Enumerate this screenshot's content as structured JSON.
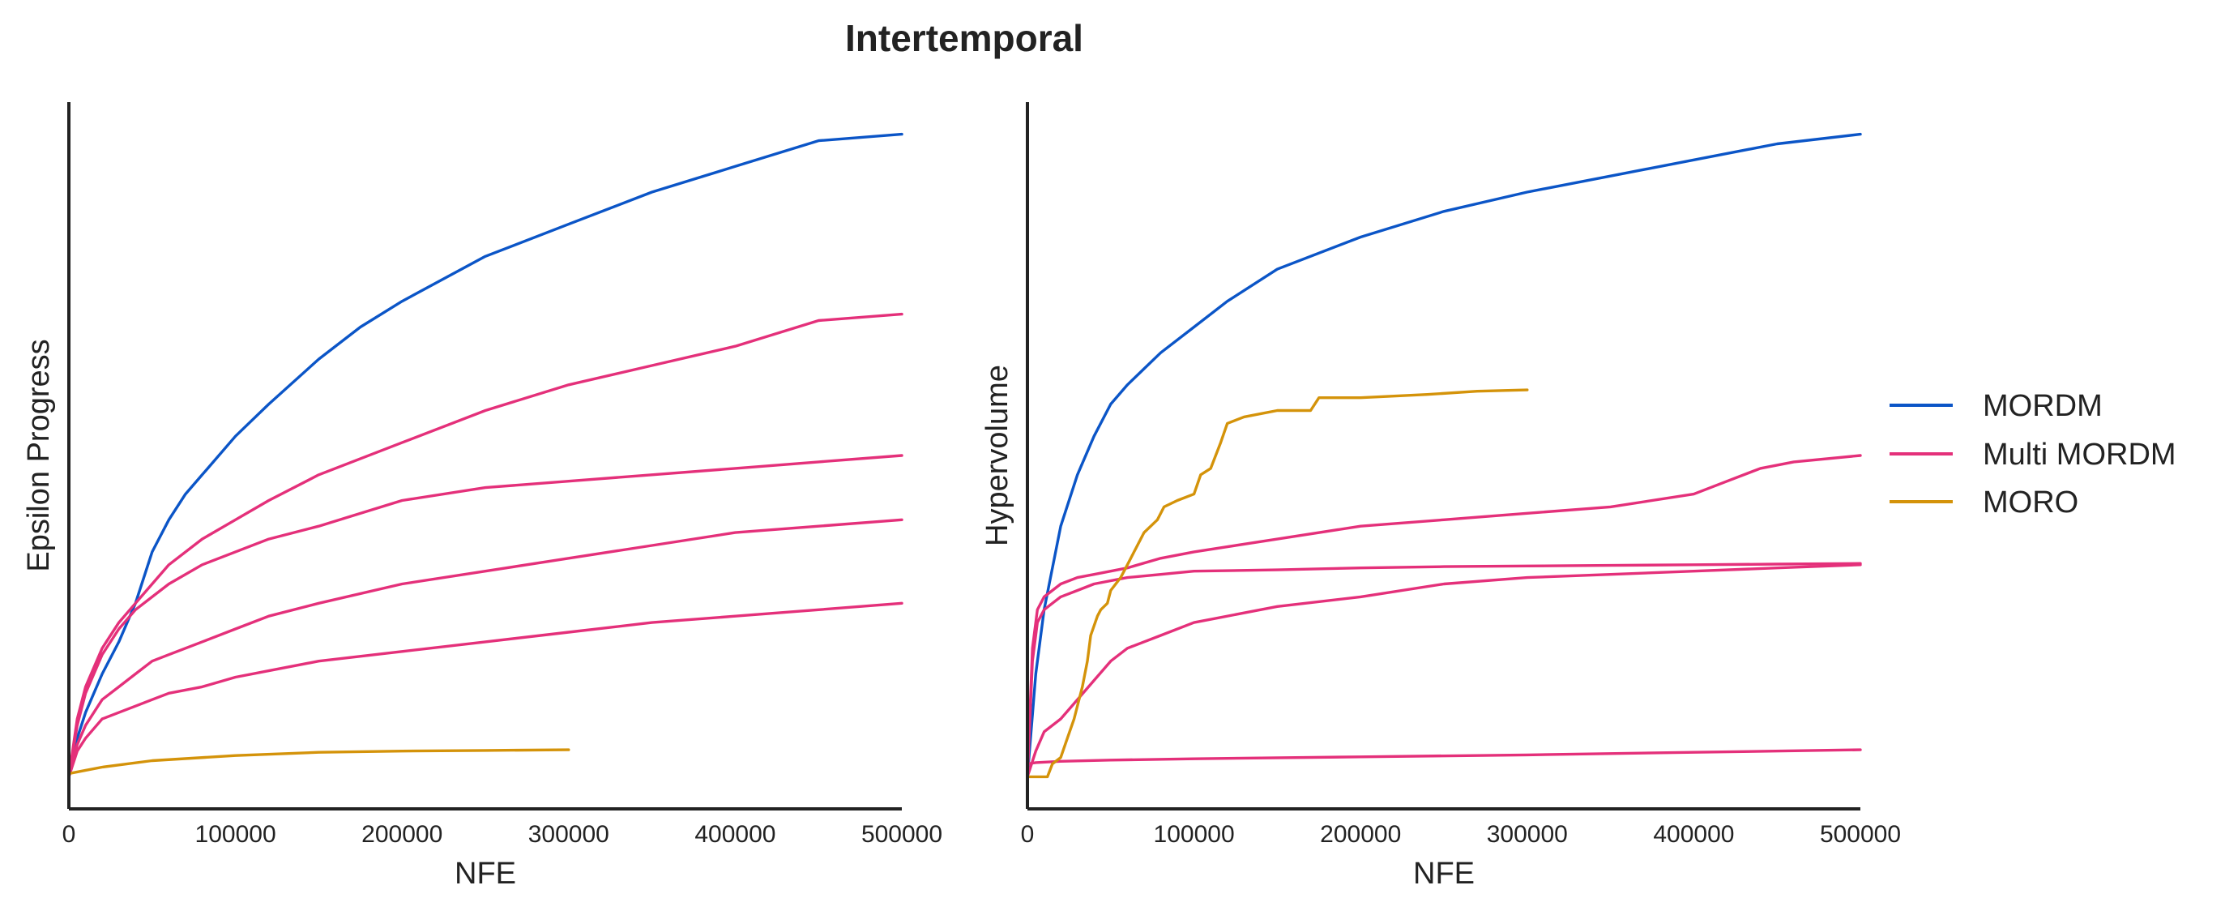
{
  "figure": {
    "title": "Intertemporal"
  },
  "colors": {
    "MORDM": "#0b55c7",
    "Multi MORDM": "#e4307a",
    "MORO": "#d4930a"
  },
  "legend": {
    "placement": "right",
    "entries": [
      {
        "name": "MORDM",
        "color": "#0b55c7"
      },
      {
        "name": "Multi MORDM",
        "color": "#e4307a"
      },
      {
        "name": "MORO",
        "color": "#d4930a"
      }
    ]
  },
  "chart_data": [
    {
      "type": "line",
      "xlabel": "NFE",
      "ylabel": "Epsilon Progress",
      "xlim": [
        0,
        500000
      ],
      "ylim": [
        -0.05,
        1.05
      ],
      "xticks": [
        "0",
        "100000",
        "200000",
        "300000",
        "400000",
        "500000"
      ],
      "yticks_visible": false,
      "grid": false,
      "series": [
        {
          "name": "MORDM",
          "color": "#0b55c7",
          "x": [
            0,
            5000,
            10000,
            20000,
            30000,
            40000,
            50000,
            60000,
            70000,
            80000,
            100000,
            120000,
            150000,
            175000,
            200000,
            250000,
            300000,
            350000,
            400000,
            450000,
            500000
          ],
          "y": [
            0,
            0.06,
            0.1,
            0.16,
            0.21,
            0.27,
            0.35,
            0.4,
            0.44,
            0.47,
            0.53,
            0.58,
            0.65,
            0.7,
            0.74,
            0.81,
            0.86,
            0.91,
            0.95,
            0.99,
            1.0
          ]
        },
        {
          "series_group": "Multi MORDM",
          "color": "#e4307a",
          "x": [
            0,
            5000,
            10000,
            20000,
            30000,
            40000,
            50000,
            60000,
            80000,
            100000,
            120000,
            150000,
            200000,
            250000,
            300000,
            350000,
            400000,
            450000,
            500000
          ],
          "y": [
            0,
            0.09,
            0.14,
            0.2,
            0.24,
            0.27,
            0.3,
            0.33,
            0.37,
            0.4,
            0.43,
            0.47,
            0.52,
            0.57,
            0.61,
            0.64,
            0.67,
            0.71,
            0.72
          ]
        },
        {
          "series_group": "Multi MORDM",
          "color": "#e4307a",
          "x": [
            0,
            5000,
            10000,
            20000,
            30000,
            40000,
            50000,
            60000,
            80000,
            100000,
            120000,
            150000,
            200000,
            250000,
            300000,
            350000,
            400000,
            450000,
            500000
          ],
          "y": [
            0,
            0.08,
            0.13,
            0.19,
            0.23,
            0.26,
            0.28,
            0.3,
            0.33,
            0.35,
            0.37,
            0.39,
            0.43,
            0.45,
            0.46,
            0.47,
            0.48,
            0.49,
            0.5
          ]
        },
        {
          "series_group": "Multi MORDM",
          "color": "#e4307a",
          "x": [
            0,
            5000,
            10000,
            20000,
            30000,
            40000,
            50000,
            60000,
            80000,
            100000,
            120000,
            150000,
            200000,
            250000,
            300000,
            350000,
            400000,
            450000,
            500000
          ],
          "y": [
            0,
            0.05,
            0.08,
            0.12,
            0.14,
            0.16,
            0.18,
            0.19,
            0.21,
            0.23,
            0.25,
            0.27,
            0.3,
            0.32,
            0.34,
            0.36,
            0.38,
            0.39,
            0.4
          ]
        },
        {
          "series_group": "Multi MORDM",
          "color": "#e4307a",
          "x": [
            0,
            5000,
            10000,
            20000,
            30000,
            40000,
            50000,
            60000,
            80000,
            100000,
            120000,
            150000,
            200000,
            250000,
            300000,
            350000,
            400000,
            450000,
            500000
          ],
          "y": [
            0,
            0.04,
            0.06,
            0.09,
            0.1,
            0.11,
            0.12,
            0.13,
            0.14,
            0.155,
            0.165,
            0.18,
            0.195,
            0.21,
            0.225,
            0.24,
            0.25,
            0.26,
            0.27
          ]
        },
        {
          "name": "MORO",
          "color": "#d4930a",
          "x": [
            0,
            10000,
            20000,
            50000,
            100000,
            150000,
            200000,
            250000,
            300000
          ],
          "y": [
            0.005,
            0.01,
            0.015,
            0.025,
            0.033,
            0.038,
            0.04,
            0.041,
            0.042
          ]
        }
      ]
    },
    {
      "type": "line",
      "xlabel": "NFE",
      "ylabel": "Hypervolume",
      "xlim": [
        0,
        500000
      ],
      "ylim": [
        -0.05,
        1.05
      ],
      "xticks": [
        "0",
        "100000",
        "200000",
        "300000",
        "400000",
        "500000"
      ],
      "yticks_visible": false,
      "grid": false,
      "series": [
        {
          "name": "MORDM",
          "color": "#0b55c7",
          "x": [
            0,
            5000,
            10000,
            20000,
            30000,
            40000,
            50000,
            60000,
            70000,
            80000,
            100000,
            120000,
            150000,
            200000,
            250000,
            300000,
            350000,
            400000,
            450000,
            500000
          ],
          "y": [
            0,
            0.16,
            0.26,
            0.39,
            0.47,
            0.53,
            0.58,
            0.61,
            0.635,
            0.66,
            0.7,
            0.74,
            0.79,
            0.84,
            0.88,
            0.91,
            0.935,
            0.96,
            0.985,
            1.0
          ]
        },
        {
          "series_group": "Multi MORDM",
          "color": "#e4307a",
          "x": [
            0,
            3000,
            6000,
            10000,
            15000,
            20000,
            30000,
            40000,
            60000,
            80000,
            100000,
            150000,
            200000,
            250000,
            300000,
            350000,
            400000,
            420000,
            440000,
            460000,
            500000
          ],
          "y": [
            0,
            0.2,
            0.26,
            0.28,
            0.29,
            0.3,
            0.31,
            0.315,
            0.325,
            0.34,
            0.35,
            0.37,
            0.39,
            0.4,
            0.41,
            0.42,
            0.44,
            0.46,
            0.48,
            0.49,
            0.5
          ]
        },
        {
          "series_group": "Multi MORDM",
          "color": "#e4307a",
          "x": [
            0,
            3000,
            6000,
            10000,
            15000,
            20000,
            30000,
            40000,
            60000,
            80000,
            100000,
            150000,
            200000,
            250000,
            300000,
            350000,
            400000,
            450000,
            500000
          ],
          "y": [
            0,
            0.18,
            0.24,
            0.26,
            0.27,
            0.28,
            0.29,
            0.3,
            0.31,
            0.315,
            0.32,
            0.322,
            0.325,
            0.327,
            0.328,
            0.329,
            0.33,
            0.331,
            0.332
          ]
        },
        {
          "series_group": "Multi MORDM",
          "color": "#e4307a",
          "x": [
            0,
            5000,
            10000,
            20000,
            30000,
            40000,
            50000,
            60000,
            70000,
            80000,
            100000,
            150000,
            200000,
            250000,
            300000,
            350000,
            400000,
            450000,
            500000
          ],
          "y": [
            0,
            0.04,
            0.07,
            0.09,
            0.12,
            0.15,
            0.18,
            0.2,
            0.21,
            0.22,
            0.24,
            0.265,
            0.28,
            0.3,
            0.31,
            0.315,
            0.32,
            0.325,
            0.33
          ]
        },
        {
          "series_group": "Multi MORDM",
          "color": "#e4307a",
          "x": [
            0,
            5000,
            20000,
            50000,
            100000,
            200000,
            300000,
            400000,
            500000
          ],
          "y": [
            0.02,
            0.022,
            0.024,
            0.026,
            0.028,
            0.031,
            0.034,
            0.038,
            0.042
          ]
        },
        {
          "name": "MORO",
          "color": "#d4930a",
          "x": [
            0,
            12000,
            15000,
            20000,
            24000,
            28000,
            31000,
            33000,
            36000,
            38000,
            42000,
            44000,
            48000,
            50000,
            56000,
            60000,
            66000,
            70000,
            78000,
            82000,
            90000,
            100000,
            104000,
            110000,
            116000,
            120000,
            130000,
            150000,
            170000,
            175000,
            200000,
            240000,
            270000,
            300000
          ],
          "y": [
            0,
            0,
            0.02,
            0.03,
            0.06,
            0.09,
            0.12,
            0.14,
            0.18,
            0.22,
            0.25,
            0.26,
            0.27,
            0.29,
            0.31,
            0.33,
            0.36,
            0.38,
            0.4,
            0.42,
            0.43,
            0.44,
            0.47,
            0.48,
            0.52,
            0.55,
            0.56,
            0.57,
            0.57,
            0.59,
            0.59,
            0.595,
            0.6,
            0.602
          ]
        }
      ]
    }
  ]
}
